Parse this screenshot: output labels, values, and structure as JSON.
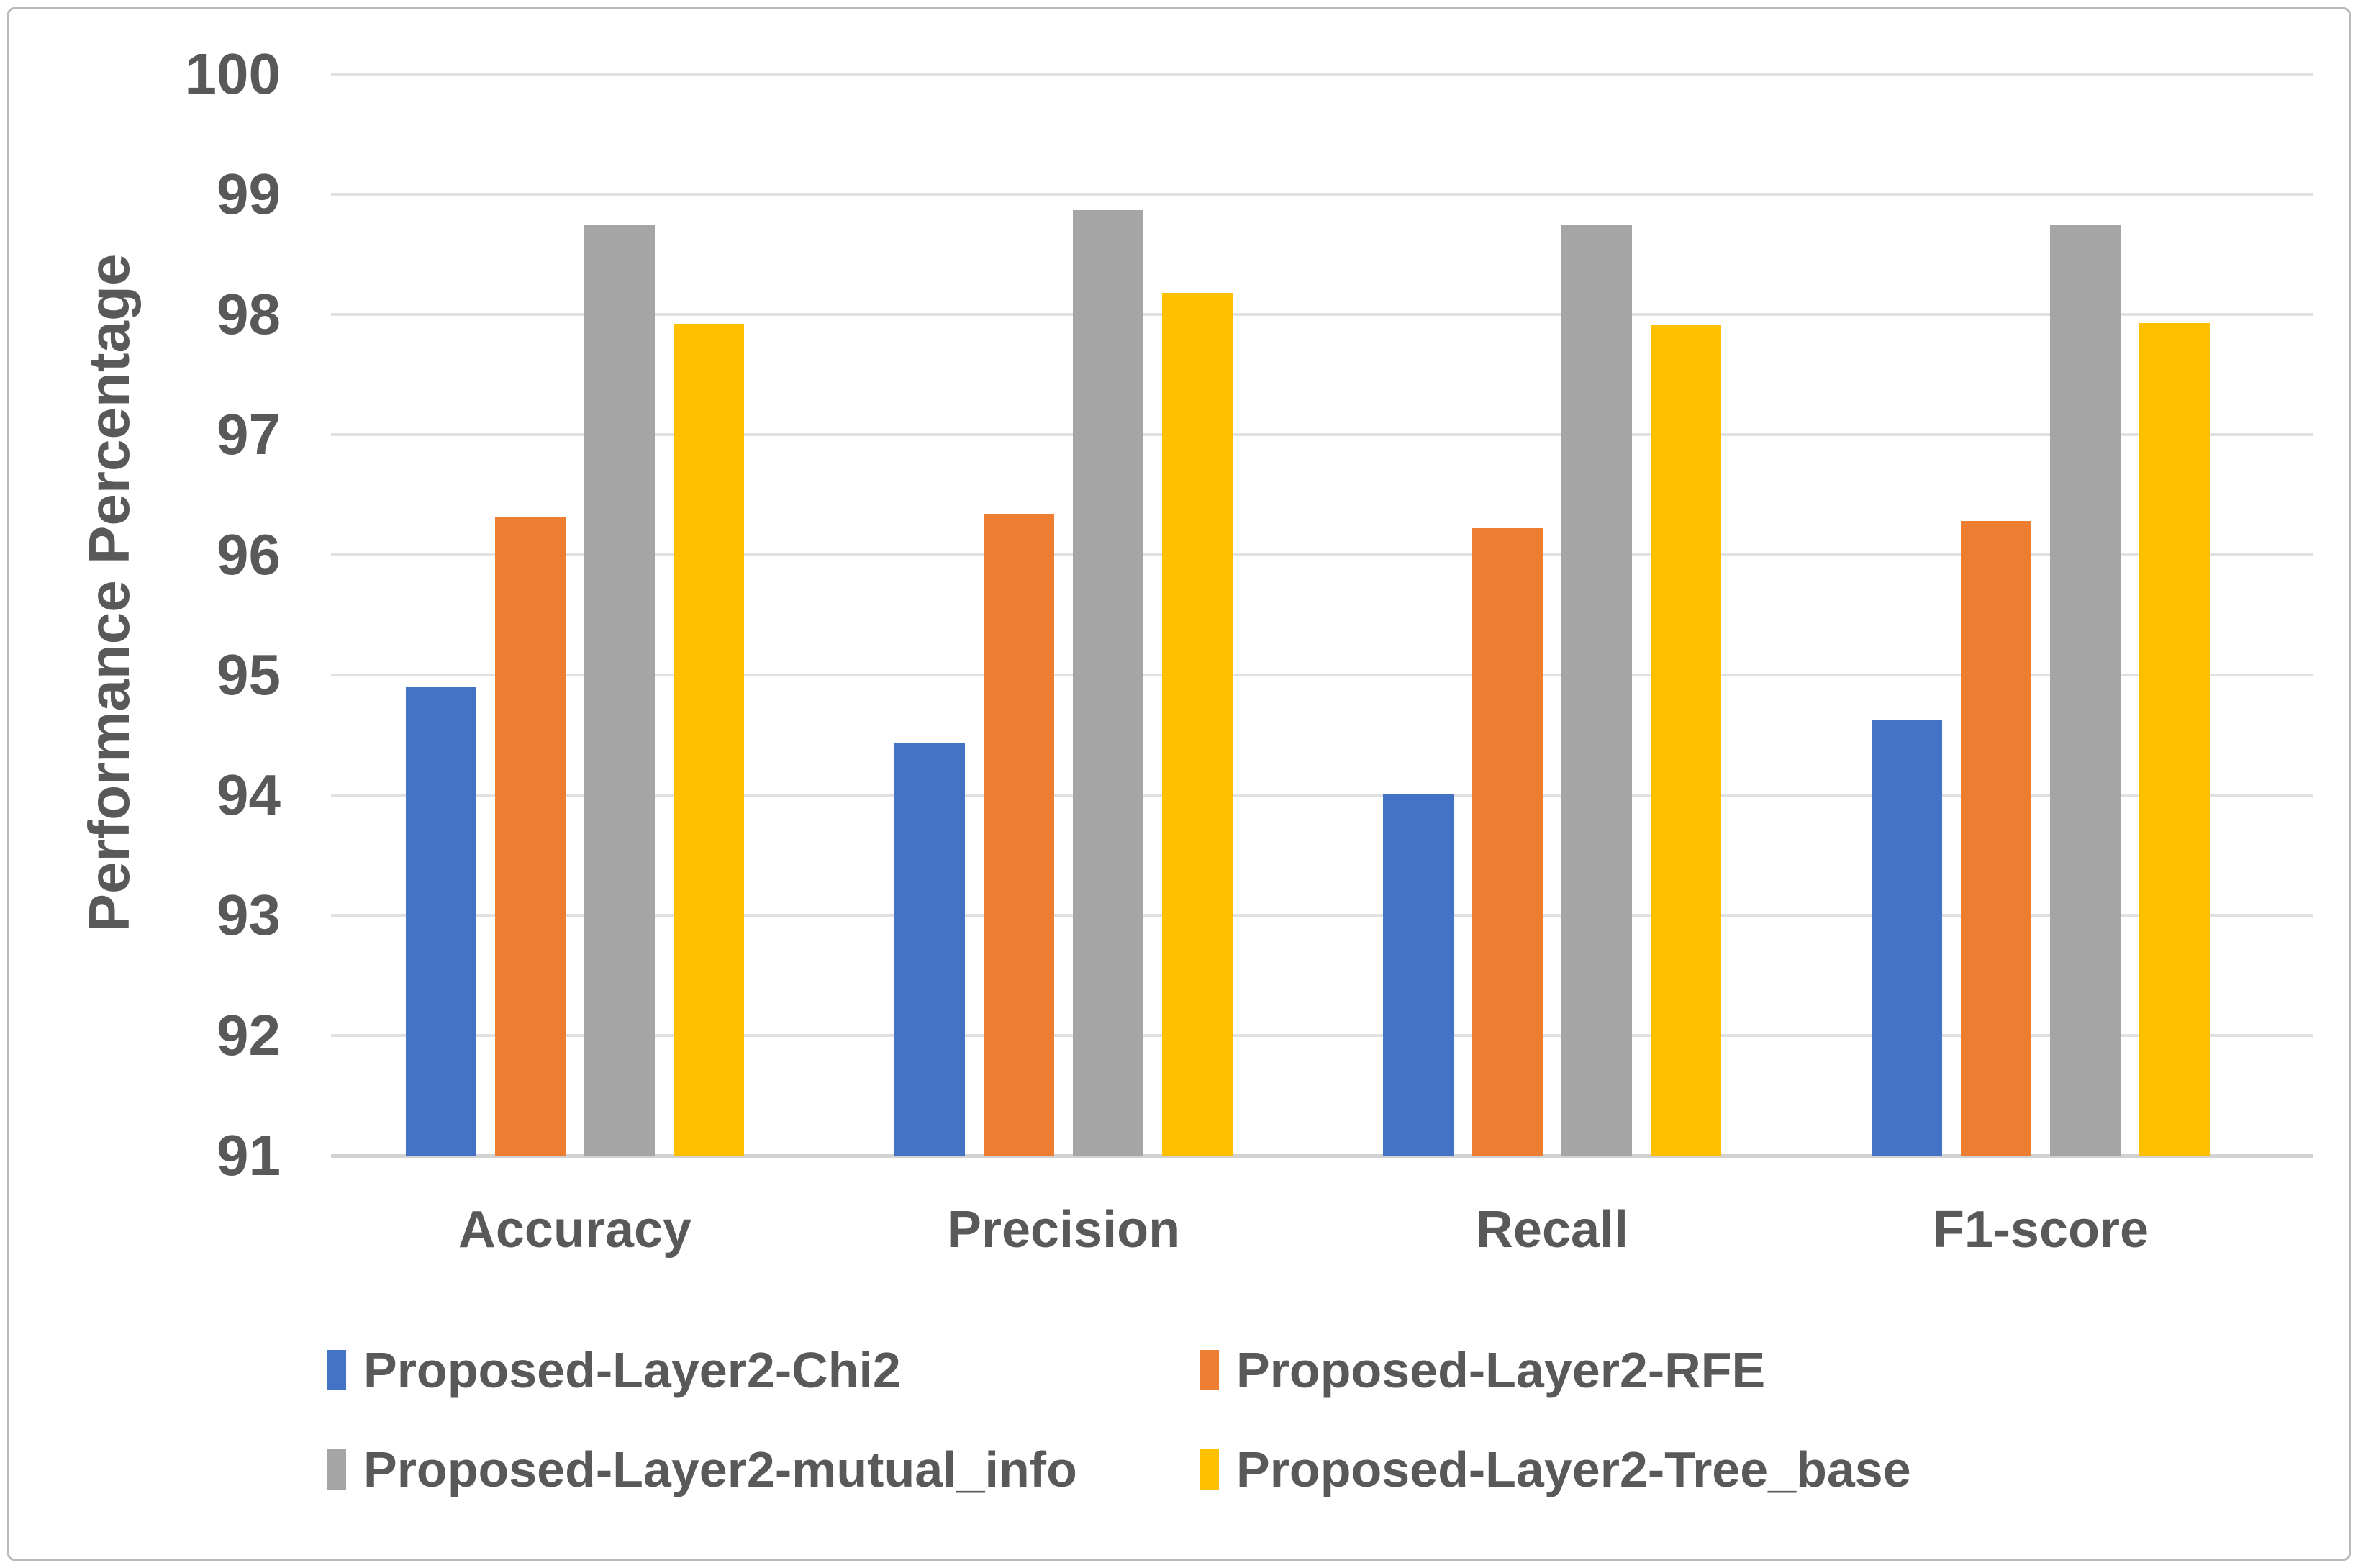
{
  "chart_data": {
    "type": "bar",
    "title": "",
    "xlabel": "",
    "ylabel": "Performance Percentage",
    "categories": [
      "Accuracy",
      "Precision",
      "Recall",
      "F1-score"
    ],
    "series": [
      {
        "name": "Proposed-Layer2-Chi2",
        "color": "#4472C4",
        "values": [
          94.9,
          94.44,
          94.01,
          94.62
        ]
      },
      {
        "name": "Proposed-Layer2-RFE",
        "color": "#ED7D31",
        "values": [
          96.31,
          96.34,
          96.22,
          96.28
        ]
      },
      {
        "name": "Proposed-Layer2-mutual_info",
        "color": "#A5A5A5",
        "values": [
          98.74,
          98.87,
          98.74,
          98.74
        ]
      },
      {
        "name": "Proposed-Layer2-Tree_base",
        "color": "#FFC000",
        "values": [
          97.92,
          98.18,
          97.91,
          97.93
        ]
      }
    ],
    "ylim": [
      91,
      100
    ],
    "y_ticks": [
      91,
      92,
      93,
      94,
      95,
      96,
      97,
      98,
      99,
      100
    ],
    "grid": "horizontal",
    "legend_position": "bottom",
    "legend_columns": 2
  },
  "colors": {
    "text": "#595959",
    "gridline": "#E1E1E1",
    "baseline": "#D2D2D2",
    "border": "#B9B9B9",
    "background": "#FFFFFF"
  }
}
